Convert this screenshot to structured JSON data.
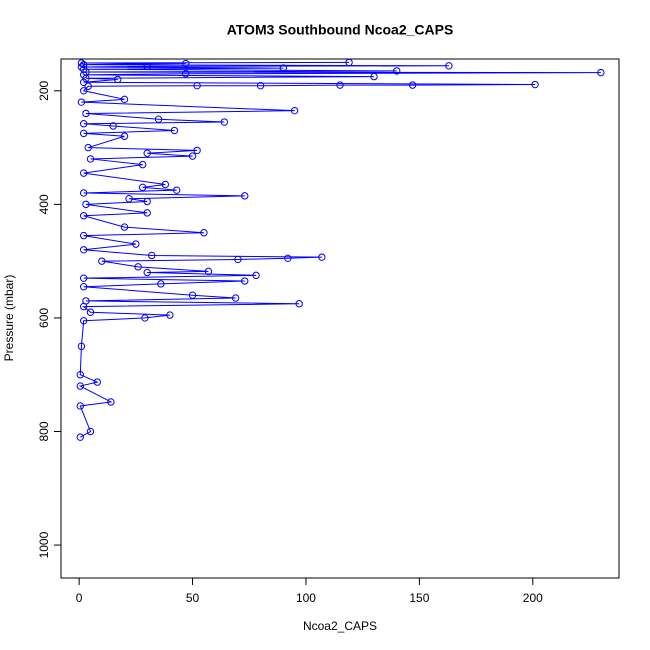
{
  "chart_data": {
    "type": "line",
    "title": "ATOM3 Southbound Ncoa2_CAPS",
    "x_label": "Ncoa2_CAPS",
    "y_label": "Pressure (mbar)",
    "color": "#0000ff",
    "xlim": [
      -8,
      238
    ],
    "xticks": [
      0,
      50,
      100,
      150,
      200
    ],
    "ylim": [
      1058,
      144
    ],
    "yticks": [
      200,
      400,
      600,
      800,
      1000
    ],
    "x": [
      119,
      1,
      47,
      2,
      163,
      30,
      1,
      90,
      2,
      140,
      3,
      230,
      47,
      2,
      130,
      3,
      17,
      2,
      201,
      147,
      115,
      80,
      52,
      4,
      2,
      20,
      1,
      95,
      3,
      35,
      64,
      2,
      15,
      42,
      2,
      20,
      4,
      52,
      30,
      50,
      5,
      28,
      2,
      38,
      28,
      43,
      2,
      73,
      22,
      30,
      3,
      30,
      2,
      20,
      55,
      2,
      25,
      2,
      32,
      107,
      92,
      70,
      10,
      26,
      57,
      30,
      78,
      2,
      73,
      36,
      2,
      50,
      69,
      3,
      97,
      2,
      5,
      40,
      29,
      2,
      1,
      0.5,
      8,
      0.5,
      14,
      0.5,
      5,
      0.5
    ],
    "values": [
      150,
      151,
      152,
      154,
      156,
      157,
      158,
      160,
      162,
      165,
      167,
      168,
      170,
      172,
      175,
      178,
      180,
      185,
      189,
      190,
      190,
      191,
      191,
      192,
      200,
      215,
      220,
      235,
      240,
      250,
      255,
      258,
      262,
      270,
      275,
      280,
      300,
      305,
      310,
      315,
      320,
      330,
      345,
      365,
      370,
      375,
      380,
      385,
      390,
      395,
      400,
      415,
      420,
      440,
      450,
      455,
      470,
      480,
      490,
      493,
      495,
      497,
      500,
      510,
      518,
      520,
      525,
      530,
      535,
      540,
      545,
      560,
      565,
      570,
      575,
      580,
      590,
      595,
      600,
      605,
      650,
      700,
      713,
      720,
      748,
      755,
      800,
      810
    ]
  }
}
